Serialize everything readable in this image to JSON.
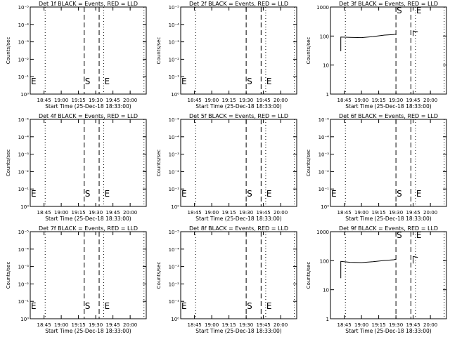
{
  "chart_data": [
    {
      "type": "line",
      "title": "Det 1f BLACK = Events, RED = LLD",
      "xlabel": "Start Time (25-Dec-18 18:33:00)",
      "ylabel": "Counts/sec",
      "yscale": "log",
      "ylim": [
        1,
        10000
      ],
      "ytick_labels": [
        "10⁰",
        "10⁻¹",
        "10⁻²",
        "10⁻³",
        "10⁻⁴",
        "10⁻⁵"
      ],
      "xlim": [
        "18:33",
        "20:14"
      ],
      "xtick_labels": [
        "18:45",
        "19:00",
        "19:15",
        "19:30",
        "19:45",
        "20:00"
      ],
      "markers": [
        {
          "label": "E",
          "time": "18:33",
          "style": "dotted"
        },
        {
          "label": "",
          "time": "18:46",
          "style": "dotted"
        },
        {
          "label": "S",
          "time": "19:20",
          "style": "dashed"
        },
        {
          "label": "",
          "time": "19:33",
          "style": "dashed"
        },
        {
          "label": "E",
          "time": "19:37",
          "style": "dotted"
        },
        {
          "label": "",
          "time": "20:12",
          "style": "dotted"
        }
      ],
      "series": []
    },
    {
      "type": "line",
      "title": "Det 2f BLACK = Events, RED = LLD",
      "xlabel": "Start Time (25-Dec-18 18:33:00)",
      "ylabel": "Counts/sec",
      "yscale": "log",
      "ylim": [
        1,
        10000
      ],
      "ytick_labels": [
        "10⁰",
        "10⁻¹",
        "10⁻²",
        "10⁻³",
        "10⁻⁴",
        "10⁻⁵"
      ],
      "xlim": [
        "18:33",
        "20:14"
      ],
      "xtick_labels": [
        "18:45",
        "19:00",
        "19:15",
        "19:30",
        "19:45",
        "20:00"
      ],
      "markers": [
        {
          "label": "E",
          "time": "18:33",
          "style": "dotted"
        },
        {
          "label": "",
          "time": "18:46",
          "style": "dotted"
        },
        {
          "label": "S",
          "time": "19:30",
          "style": "dashed"
        },
        {
          "label": "",
          "time": "19:43",
          "style": "dashed"
        },
        {
          "label": "E",
          "time": "19:47",
          "style": "dotted"
        },
        {
          "label": "",
          "time": "20:12",
          "style": "dotted"
        }
      ],
      "series": []
    },
    {
      "type": "line",
      "title": "Det 3f BLACK = Events, RED = LLD",
      "xlabel": "Start Time (25-Dec-18 18:33:00)",
      "ylabel": "Counts/sec",
      "yscale": "log",
      "ylim": [
        1,
        1000
      ],
      "ytick_labels": [
        "1",
        "10",
        "100",
        "1000"
      ],
      "xlim": [
        "18:33",
        "20:14"
      ],
      "xtick_labels": [
        "18:45",
        "19:00",
        "19:15",
        "19:30",
        "19:45",
        "20:00"
      ],
      "markers": [
        {
          "label": "",
          "time": "18:46",
          "style": "dotted"
        },
        {
          "label": "S",
          "time": "19:30",
          "style": "dashed"
        },
        {
          "label": "",
          "time": "19:43",
          "style": "dashed"
        },
        {
          "label": "E",
          "time": "19:47",
          "style": "dotted"
        },
        {
          "label": "",
          "time": "20:12",
          "style": "dotted"
        }
      ],
      "series": [
        {
          "color": "#000000",
          "segments": [
            [
              [
                "18:42",
                30
              ],
              [
                "18:42",
                92
              ],
              [
                "18:50",
                90
              ],
              [
                "19:00",
                88
              ],
              [
                "19:10",
                96
              ],
              [
                "19:20",
                108
              ],
              [
                "19:28",
                112
              ],
              [
                "19:30",
                118
              ]
            ],
            [
              [
                "19:45",
                100
              ],
              [
                "19:45",
                150
              ],
              [
                "19:49",
                140
              ]
            ]
          ]
        }
      ]
    },
    {
      "type": "line",
      "title": "Det 4f BLACK = Events, RED = LLD",
      "xlabel": "Start Time (25-Dec-18 18:33:00)",
      "ylabel": "Counts/sec",
      "yscale": "log",
      "ylim": [
        1,
        10000
      ],
      "ytick_labels": [
        "10⁰",
        "10⁻¹",
        "10⁻²",
        "10⁻³",
        "10⁻⁴",
        "10⁻⁵"
      ],
      "xlim": [
        "18:33",
        "20:14"
      ],
      "xtick_labels": [
        "18:45",
        "19:00",
        "19:15",
        "19:30",
        "19:45",
        "20:00"
      ],
      "markers": [
        {
          "label": "E",
          "time": "18:33",
          "style": "dotted"
        },
        {
          "label": "",
          "time": "18:46",
          "style": "dotted"
        },
        {
          "label": "S",
          "time": "19:20",
          "style": "dashed"
        },
        {
          "label": "",
          "time": "19:33",
          "style": "dashed"
        },
        {
          "label": "E",
          "time": "19:37",
          "style": "dotted"
        },
        {
          "label": "",
          "time": "20:12",
          "style": "dotted"
        }
      ],
      "series": []
    },
    {
      "type": "line",
      "title": "Det 5f BLACK = Events, RED = LLD",
      "xlabel": "Start Time (25-Dec-18 18:33:00)",
      "ylabel": "Counts/sec",
      "yscale": "log",
      "ylim": [
        1,
        10000
      ],
      "ytick_labels": [
        "10⁰",
        "10⁻¹",
        "10⁻²",
        "10⁻³",
        "10⁻⁴",
        "10⁻⁵"
      ],
      "xlim": [
        "18:33",
        "20:14"
      ],
      "xtick_labels": [
        "18:45",
        "19:00",
        "19:15",
        "19:30",
        "19:45",
        "20:00"
      ],
      "markers": [
        {
          "label": "E",
          "time": "18:33",
          "style": "dotted"
        },
        {
          "label": "",
          "time": "18:46",
          "style": "dotted"
        },
        {
          "label": "S",
          "time": "19:30",
          "style": "dashed"
        },
        {
          "label": "",
          "time": "19:43",
          "style": "dashed"
        },
        {
          "label": "E",
          "time": "19:47",
          "style": "dotted"
        },
        {
          "label": "",
          "time": "20:12",
          "style": "dotted"
        }
      ],
      "series": []
    },
    {
      "type": "line",
      "title": "Det 6f BLACK = Events, RED = LLD",
      "xlabel": "Start Time (25-Dec-18 18:33:00)",
      "ylabel": "Counts/sec",
      "yscale": "log",
      "ylim": [
        1,
        10000
      ],
      "ytick_labels": [
        "10⁰",
        "10⁻¹",
        "10⁻²",
        "10⁻³",
        "10⁻⁴",
        "10⁻⁵"
      ],
      "xlim": [
        "18:33",
        "20:14"
      ],
      "xtick_labels": [
        "18:45",
        "19:00",
        "19:15",
        "19:30",
        "19:45",
        "20:00"
      ],
      "markers": [
        {
          "label": "E",
          "time": "18:33",
          "style": "dotted"
        },
        {
          "label": "",
          "time": "18:46",
          "style": "dotted"
        },
        {
          "label": "S",
          "time": "19:30",
          "style": "dashed"
        },
        {
          "label": "",
          "time": "19:43",
          "style": "dashed"
        },
        {
          "label": "E",
          "time": "19:47",
          "style": "dotted"
        },
        {
          "label": "",
          "time": "20:12",
          "style": "dotted"
        }
      ],
      "series": []
    },
    {
      "type": "line",
      "title": "Det 7f BLACK = Events, RED = LLD",
      "xlabel": "Start Time (25-Dec-18 18:33:00)",
      "ylabel": "Counts/sec",
      "yscale": "log",
      "ylim": [
        1,
        10000
      ],
      "ytick_labels": [
        "10⁰",
        "10⁻¹",
        "10⁻²",
        "10⁻³",
        "10⁻⁴",
        "10⁻⁵"
      ],
      "xlim": [
        "18:33",
        "20:14"
      ],
      "xtick_labels": [
        "18:45",
        "19:00",
        "19:15",
        "19:30",
        "19:45",
        "20:00"
      ],
      "markers": [
        {
          "label": "E",
          "time": "18:33",
          "style": "dotted"
        },
        {
          "label": "",
          "time": "18:46",
          "style": "dotted"
        },
        {
          "label": "S",
          "time": "19:20",
          "style": "dashed"
        },
        {
          "label": "",
          "time": "19:33",
          "style": "dashed"
        },
        {
          "label": "E",
          "time": "19:37",
          "style": "dotted"
        },
        {
          "label": "",
          "time": "20:12",
          "style": "dotted"
        }
      ],
      "series": []
    },
    {
      "type": "line",
      "title": "Det 8f BLACK = Events, RED = LLD",
      "xlabel": "Start Time (25-Dec-18 18:33:00)",
      "ylabel": "Counts/sec",
      "yscale": "log",
      "ylim": [
        1,
        10000
      ],
      "ytick_labels": [
        "10⁰",
        "10⁻¹",
        "10⁻²",
        "10⁻³",
        "10⁻⁴",
        "10⁻⁵"
      ],
      "xlim": [
        "18:33",
        "20:14"
      ],
      "xtick_labels": [
        "18:45",
        "19:00",
        "19:15",
        "19:30",
        "19:45",
        "20:00"
      ],
      "markers": [
        {
          "label": "E",
          "time": "18:33",
          "style": "dotted"
        },
        {
          "label": "",
          "time": "18:46",
          "style": "dotted"
        },
        {
          "label": "S",
          "time": "19:30",
          "style": "dashed"
        },
        {
          "label": "",
          "time": "19:43",
          "style": "dashed"
        },
        {
          "label": "E",
          "time": "19:47",
          "style": "dotted"
        },
        {
          "label": "",
          "time": "20:12",
          "style": "dotted"
        }
      ],
      "series": []
    },
    {
      "type": "line",
      "title": "Det 9f BLACK = Events, RED = LLD",
      "xlabel": "Start Time (25-Dec-18 18:33:00)",
      "ylabel": "Counts/sec",
      "yscale": "log",
      "ylim": [
        1,
        1000
      ],
      "ytick_labels": [
        "1",
        "10",
        "100",
        "1000"
      ],
      "xlim": [
        "18:33",
        "20:14"
      ],
      "xtick_labels": [
        "18:45",
        "19:00",
        "19:15",
        "19:30",
        "19:45",
        "20:00"
      ],
      "markers": [
        {
          "label": "",
          "time": "18:46",
          "style": "dotted"
        },
        {
          "label": "S",
          "time": "19:30",
          "style": "dashed"
        },
        {
          "label": "",
          "time": "19:43",
          "style": "dashed"
        },
        {
          "label": "E",
          "time": "19:47",
          "style": "dotted"
        },
        {
          "label": "",
          "time": "20:12",
          "style": "dotted"
        }
      ],
      "series": [
        {
          "color": "#000000",
          "segments": [
            [
              [
                "18:42",
                25
              ],
              [
                "18:42",
                95
              ],
              [
                "18:50",
                88
              ],
              [
                "19:00",
                86
              ],
              [
                "19:10",
                92
              ],
              [
                "19:20",
                102
              ],
              [
                "19:28",
                108
              ],
              [
                "19:30",
                112
              ]
            ],
            [
              [
                "19:45",
                80
              ],
              [
                "19:45",
                140
              ],
              [
                "19:49",
                130
              ]
            ]
          ]
        }
      ]
    }
  ]
}
